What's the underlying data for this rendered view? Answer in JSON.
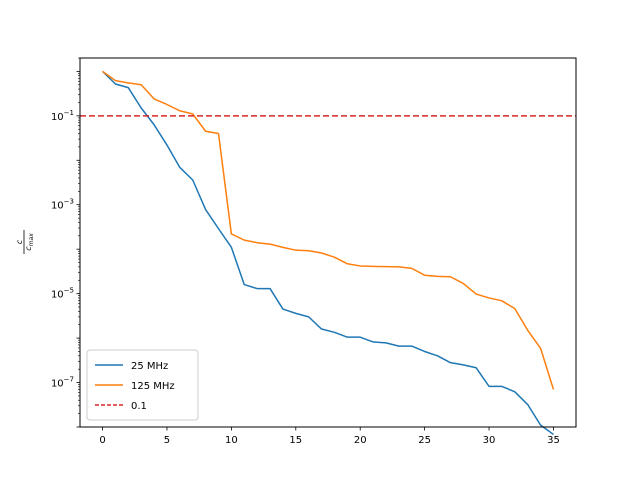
{
  "chart_data": {
    "type": "line",
    "title": "",
    "xlabel": "",
    "ylabel": "c / c_max",
    "yscale": "log",
    "xlim": [
      -1.75,
      36.75
    ],
    "ylim": [
      1e-08,
      2
    ],
    "grid": false,
    "legend_position": "lower-left",
    "x_ticks": [
      0,
      5,
      10,
      15,
      20,
      25,
      30,
      35
    ],
    "y_ticks": [
      {
        "value": 1e-07,
        "base": "10",
        "exp": "−7"
      },
      {
        "value": 1e-05,
        "base": "10",
        "exp": "−5"
      },
      {
        "value": 0.001,
        "base": "10",
        "exp": "−3"
      },
      {
        "value": 0.1,
        "base": "10",
        "exp": "−1"
      }
    ],
    "x": [
      0,
      1,
      2,
      3,
      4,
      5,
      6,
      7,
      8,
      9,
      10,
      11,
      12,
      13,
      14,
      15,
      16,
      17,
      18,
      19,
      20,
      21,
      22,
      23,
      24,
      25,
      26,
      27,
      28,
      29,
      30,
      31,
      32,
      33,
      34,
      35
    ],
    "series": [
      {
        "name": "25 MHz",
        "color": "#1f77b4",
        "style": "solid",
        "values": [
          1.0,
          0.52,
          0.43,
          0.15,
          0.063,
          0.022,
          0.0069,
          0.0036,
          0.00078,
          0.00029,
          0.00011,
          1.6e-05,
          1.3e-05,
          1.3e-05,
          4.5e-06,
          3.6e-06,
          3e-06,
          1.6e-06,
          1.35e-06,
          1.05e-06,
          1.05e-06,
          8.2e-07,
          7.8e-07,
          6.6e-07,
          6.6e-07,
          5e-07,
          4e-07,
          2.8e-07,
          2.5e-07,
          2.15e-07,
          8.2e-08,
          8.2e-08,
          6.2e-08,
          3.2e-08,
          1.1e-08,
          6.8e-09
        ]
      },
      {
        "name": "125 MHz",
        "color": "#ff7f0e",
        "style": "solid",
        "values": [
          1.0,
          0.62,
          0.55,
          0.5,
          0.24,
          0.18,
          0.13,
          0.11,
          0.045,
          0.04,
          0.00022,
          0.00016,
          0.00014,
          0.00013,
          0.00011,
          9.5e-05,
          9.2e-05,
          8.2e-05,
          6.6e-05,
          4.7e-05,
          4.2e-05,
          4.1e-05,
          4.05e-05,
          4e-05,
          3.7e-05,
          2.6e-05,
          2.45e-05,
          2.4e-05,
          1.7e-05,
          9.8e-06,
          8e-06,
          6.9e-06,
          4.6e-06,
          1.5e-06,
          5.9e-07,
          7e-08
        ]
      }
    ],
    "reference_lines": [
      {
        "name": "0.1",
        "value": 0.1,
        "color": "#d62728",
        "style": "dashed"
      }
    ]
  }
}
